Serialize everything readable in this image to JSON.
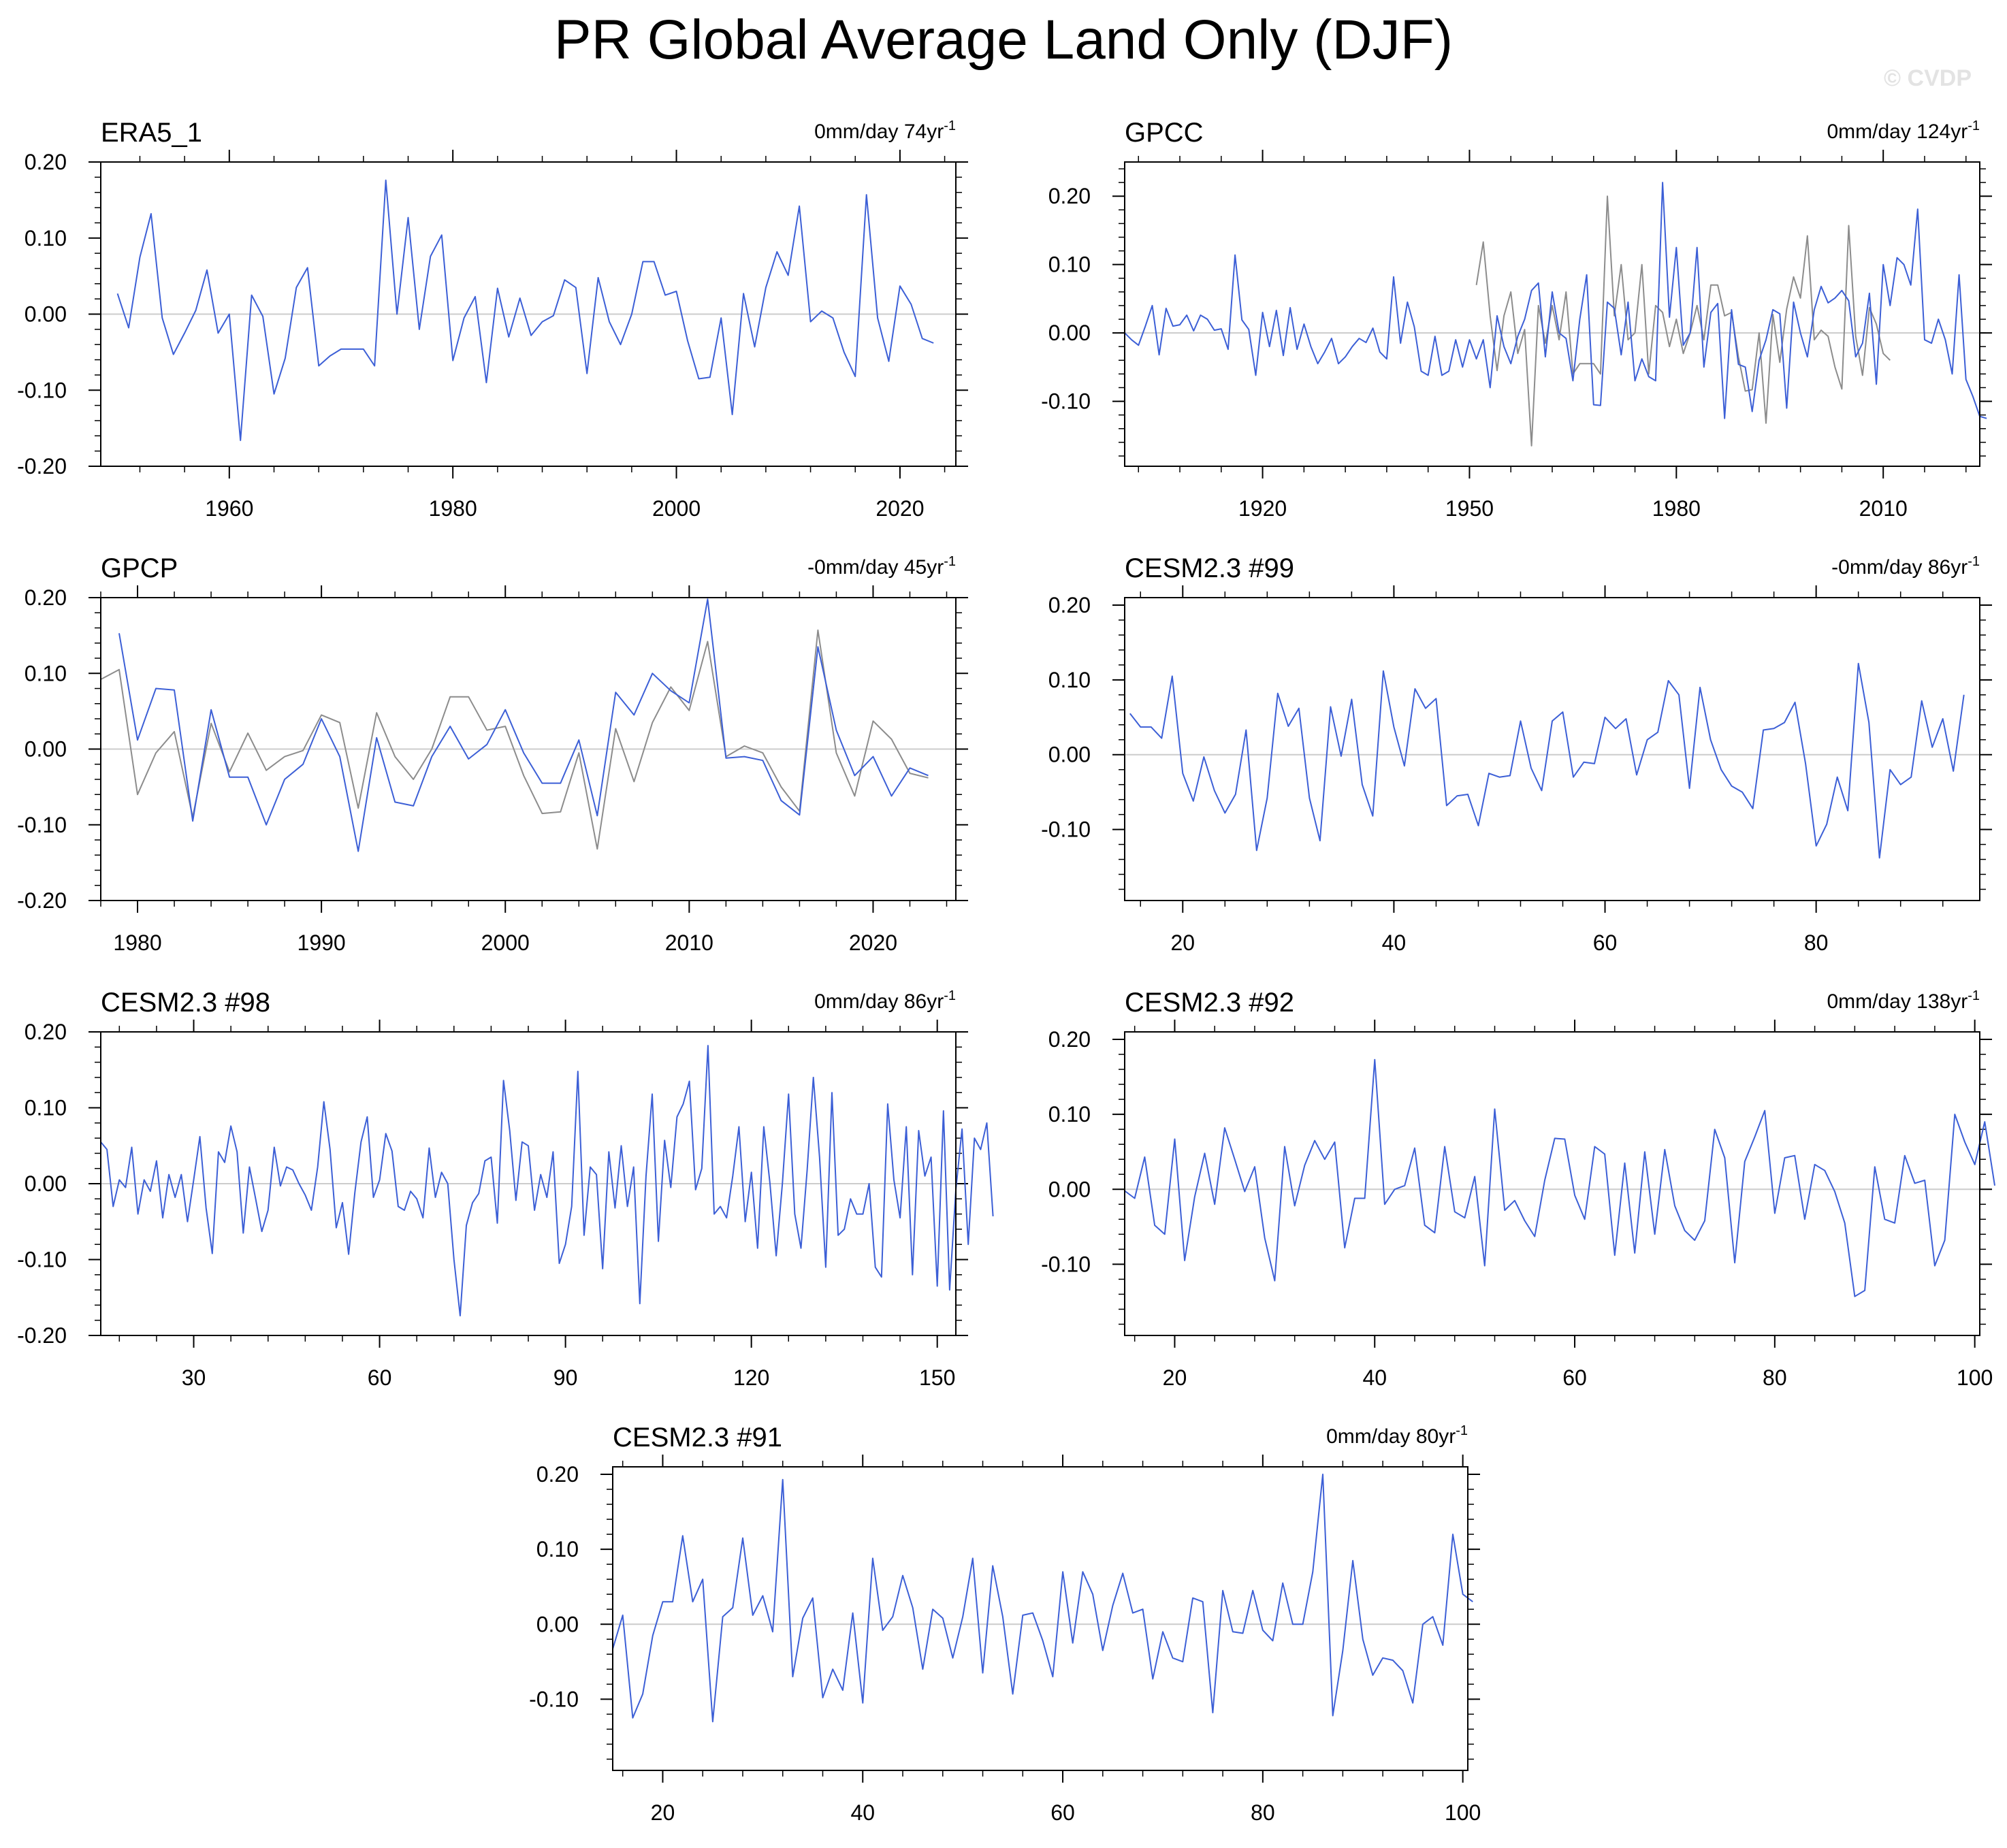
{
  "title": "PR Global Average Land Only (DJF)",
  "watermark": "© CVDP",
  "colors": {
    "model": "#3c5fd6",
    "obs": "#8c8c8c",
    "zero_line": "#cccccc",
    "axis": "#000000"
  },
  "chart_data": [
    {
      "type": "line",
      "title": "ERA5_1",
      "trend_label": "0mm/day 74yr",
      "trend_exp": "-1",
      "x_ticks": [
        1960,
        1980,
        2000,
        2020
      ],
      "x_tick_labels": [
        "1960",
        "1980",
        "2000",
        "2020"
      ],
      "xlim": [
        1948.5,
        2025
      ],
      "ylim": [
        -0.2,
        0.2
      ],
      "y_ticks": [
        -0.2,
        -0.1,
        0,
        0.1,
        0.2
      ],
      "y_tick_labels": [
        "-0.20",
        "-0.10",
        "0.00",
        "0.10",
        "0.20"
      ],
      "series": [
        {
          "x_start": 1950,
          "values": [
            0.027,
            -0.018,
            0.075,
            0.132,
            -0.005,
            -0.053,
            -0.025,
            0.005,
            0.058,
            -0.025,
            0.0,
            -0.166,
            0.025,
            -0.003,
            -0.105,
            -0.058,
            0.035,
            0.061,
            -0.068,
            -0.055,
            -0.046,
            -0.046,
            -0.046,
            -0.068,
            0.176,
            0.0,
            0.127,
            -0.02,
            0.076,
            0.104,
            -0.061,
            -0.005,
            0.023,
            -0.09,
            0.034,
            -0.03,
            0.021,
            -0.028,
            -0.01,
            -0.002,
            0.045,
            0.035,
            -0.078,
            0.048,
            -0.01,
            -0.04,
            0.0,
            0.069,
            0.069,
            0.025,
            0.03,
            -0.035,
            -0.085,
            -0.083,
            -0.005,
            -0.132,
            0.027,
            -0.043,
            0.035,
            0.082,
            0.051,
            0.142,
            -0.01,
            0.004,
            -0.005,
            -0.05,
            -0.082,
            0.157,
            -0.005,
            -0.062,
            0.037,
            0.013,
            -0.032,
            -0.038
          ]
        }
      ]
    },
    {
      "type": "line",
      "title": "GPCC",
      "trend_label": "0mm/day 124yr",
      "trend_exp": "-1",
      "x_ticks": [
        1920,
        1950,
        1980,
        2010
      ],
      "x_tick_labels": [
        "1920",
        "1950",
        "1980",
        "2010"
      ],
      "xlim": [
        1900,
        2024
      ],
      "ylim": [
        -0.195,
        0.25
      ],
      "y_ticks": [
        -0.1,
        0,
        0.1,
        0.2
      ],
      "y_tick_labels": [
        "-0.10",
        "0.00",
        "0.10",
        "0.20"
      ],
      "series": [
        {
          "x_start": 1900,
          "values": [
            0.0,
            -0.01,
            -0.018,
            0.01,
            0.04,
            -0.032,
            0.036,
            0.01,
            0.012,
            0.026,
            0.003,
            0.026,
            0.02,
            0.004,
            0.006,
            -0.024,
            0.114,
            0.019,
            0.005,
            -0.062,
            0.03,
            -0.02,
            0.033,
            -0.033,
            0.037,
            -0.024,
            0.013,
            -0.02,
            -0.045,
            -0.028,
            -0.008,
            -0.045,
            -0.035,
            -0.02,
            -0.008,
            -0.014,
            0.007,
            -0.028,
            -0.038,
            0.082,
            -0.015,
            0.045,
            0.009,
            -0.056,
            -0.062,
            -0.005,
            -0.062,
            -0.056,
            -0.01,
            -0.05,
            -0.01,
            -0.038,
            -0.01,
            -0.08,
            0.025,
            -0.02,
            -0.045,
            -0.005,
            0.02,
            0.062,
            0.073,
            -0.035,
            0.06,
            0.0,
            -0.008,
            -0.07,
            0.02,
            0.085,
            -0.105,
            -0.106,
            0.045,
            0.036,
            -0.032,
            0.045,
            -0.07,
            -0.038,
            -0.064,
            -0.07,
            0.22,
            0.023,
            0.125,
            -0.018,
            0.0,
            0.125,
            -0.05,
            0.03,
            0.043,
            -0.125,
            0.034,
            -0.046,
            -0.05,
            -0.115,
            -0.04,
            -0.01,
            0.034,
            0.028,
            -0.11,
            0.045,
            0.0,
            -0.035,
            0.034,
            0.068,
            0.044,
            0.051,
            0.062,
            0.047,
            -0.035,
            -0.015,
            0.058,
            -0.075,
            0.1,
            0.04,
            0.11,
            0.1,
            0.07,
            0.181,
            -0.01,
            -0.015,
            0.02,
            -0.01,
            -0.06,
            0.085,
            -0.068,
            -0.093,
            -0.122,
            -0.125
          ]
        },
        {
          "x_start": 1951,
          "values": [
            0.07,
            0.133,
            0.025,
            -0.055,
            0.025,
            0.06,
            -0.03,
            0.005,
            -0.165,
            0.04,
            -0.015,
            0.04,
            -0.01,
            0.06,
            -0.06,
            -0.045,
            -0.045,
            -0.045,
            -0.06,
            0.2,
            0.025,
            0.1,
            -0.01,
            0.0,
            0.1,
            -0.06,
            0.04,
            0.03,
            -0.02,
            0.02,
            -0.03,
            0.0,
            0.04,
            -0.01,
            0.07,
            0.07,
            0.025,
            0.03,
            -0.035,
            -0.085,
            -0.083,
            0.0,
            -0.132,
            0.027,
            -0.043,
            0.035,
            0.082,
            0.051,
            0.142,
            -0.01,
            0.004,
            -0.005,
            -0.05,
            -0.082,
            0.157,
            -0.005,
            -0.062,
            0.037,
            0.013,
            -0.03,
            -0.04
          ]
        }
      ]
    },
    {
      "type": "line",
      "title": "GPCP",
      "trend_label": "-0mm/day 45yr",
      "trend_exp": "-1",
      "x_ticks": [
        1980,
        1990,
        2000,
        2010,
        2020
      ],
      "x_tick_labels": [
        "1980",
        "1990",
        "2000",
        "2010",
        "2020"
      ],
      "xlim": [
        1978,
        2024.5
      ],
      "ylim": [
        -0.2,
        0.2
      ],
      "y_ticks": [
        -0.2,
        -0.1,
        0,
        0.1,
        0.2
      ],
      "y_tick_labels": [
        "-0.20",
        "-0.10",
        "0.00",
        "0.10",
        "0.20"
      ],
      "series": [
        {
          "x_start": 1979,
          "values": [
            0.153,
            0.012,
            0.08,
            0.078,
            -0.095,
            0.052,
            -0.037,
            -0.037,
            -0.1,
            -0.04,
            -0.02,
            0.04,
            -0.01,
            -0.135,
            0.015,
            -0.07,
            -0.075,
            -0.01,
            0.03,
            -0.013,
            0.006,
            0.052,
            -0.005,
            -0.045,
            -0.045,
            0.012,
            -0.088,
            0.075,
            0.045,
            0.1,
            0.077,
            0.061,
            0.198,
            -0.012,
            -0.01,
            -0.015,
            -0.068,
            -0.087,
            0.135,
            0.025,
            -0.035,
            -0.01,
            -0.062,
            -0.025,
            -0.035
          ]
        },
        {
          "x_start": 1978,
          "values": [
            0.092,
            0.105,
            -0.06,
            -0.005,
            0.023,
            -0.09,
            0.034,
            -0.03,
            0.021,
            -0.028,
            -0.01,
            -0.002,
            0.045,
            0.035,
            -0.078,
            0.048,
            -0.01,
            -0.04,
            0.0,
            0.069,
            0.069,
            0.025,
            0.03,
            -0.035,
            -0.085,
            -0.083,
            -0.005,
            -0.132,
            0.027,
            -0.043,
            0.035,
            0.082,
            0.051,
            0.142,
            -0.01,
            0.004,
            -0.005,
            -0.05,
            -0.082,
            0.157,
            -0.005,
            -0.062,
            0.037,
            0.013,
            -0.032,
            -0.038
          ]
        }
      ]
    },
    {
      "type": "line",
      "title": "CESM2.3 #99",
      "trend_label": "-0mm/day 86yr",
      "trend_exp": "-1",
      "x_ticks": [
        20,
        40,
        60,
        80
      ],
      "x_tick_labels": [
        "20",
        "40",
        "60",
        "80"
      ],
      "xlim": [
        14.5,
        95.5
      ],
      "ylim": [
        -0.195,
        0.21
      ],
      "y_ticks": [
        -0.1,
        0,
        0.1,
        0.2
      ],
      "y_tick_labels": [
        "-0.10",
        "0.00",
        "0.10",
        "0.20"
      ],
      "series": [
        {
          "x_start": 15,
          "values": [
            0.055,
            0.037,
            0.037,
            0.022,
            0.105,
            -0.025,
            -0.062,
            -0.003,
            -0.048,
            -0.078,
            -0.053,
            0.033,
            -0.128,
            -0.058,
            0.082,
            0.038,
            0.062,
            -0.058,
            -0.115,
            0.064,
            -0.002,
            0.074,
            -0.04,
            -0.082,
            0.112,
            0.037,
            -0.015,
            0.088,
            0.062,
            0.075,
            -0.068,
            -0.055,
            -0.053,
            -0.095,
            -0.025,
            -0.03,
            -0.028,
            0.045,
            -0.018,
            -0.048,
            0.045,
            0.057,
            -0.03,
            -0.01,
            -0.012,
            0.05,
            0.035,
            0.048,
            -0.027,
            0.02,
            0.03,
            0.099,
            0.08,
            -0.045,
            0.09,
            0.02,
            -0.02,
            -0.042,
            -0.05,
            -0.072,
            0.033,
            0.035,
            0.043,
            0.07,
            -0.012,
            -0.122,
            -0.093,
            -0.03,
            -0.075,
            0.122,
            0.043,
            -0.138,
            -0.02,
            -0.04,
            -0.03,
            0.072,
            0.01,
            0.048,
            -0.022,
            0.08
          ]
        }
      ]
    },
    {
      "type": "line",
      "title": "CESM2.3 #98",
      "trend_label": "0mm/day 86yr",
      "trend_exp": "-1",
      "x_ticks": [
        30,
        60,
        90,
        120,
        150
      ],
      "x_tick_labels": [
        "30",
        "60",
        "90",
        "120",
        "150"
      ],
      "xlim": [
        15,
        153
      ],
      "ylim": [
        -0.2,
        0.2
      ],
      "y_ticks": [
        -0.2,
        -0.1,
        0,
        0.1,
        0.2
      ],
      "y_tick_labels": [
        "-0.20",
        "-0.10",
        "0.00",
        "0.10",
        "0.20"
      ],
      "series": [
        {
          "x_start": 15,
          "values": [
            0.055,
            0.045,
            -0.03,
            0.005,
            -0.005,
            0.048,
            -0.04,
            0.005,
            -0.01,
            0.03,
            -0.045,
            0.012,
            -0.018,
            0.012,
            -0.05,
            0.005,
            0.062,
            -0.032,
            -0.092,
            0.042,
            0.028,
            0.076,
            0.042,
            -0.065,
            0.022,
            -0.02,
            -0.063,
            -0.035,
            0.048,
            -0.003,
            0.022,
            0.018,
            0.0,
            -0.015,
            -0.035,
            0.022,
            0.108,
            0.045,
            -0.058,
            -0.025,
            -0.093,
            -0.012,
            0.055,
            0.088,
            -0.018,
            0.005,
            0.066,
            0.043,
            -0.03,
            -0.035,
            -0.01,
            -0.02,
            -0.045,
            0.047,
            -0.018,
            0.015,
            0.0,
            -0.1,
            -0.174,
            -0.055,
            -0.025,
            -0.013,
            0.03,
            0.035,
            -0.052,
            0.136,
            0.07,
            -0.022,
            0.055,
            0.05,
            -0.035,
            0.012,
            -0.018,
            0.042,
            -0.105,
            -0.08,
            -0.03,
            0.148,
            -0.068,
            0.022,
            0.012,
            -0.112,
            0.042,
            -0.032,
            0.05,
            -0.03,
            0.022,
            -0.158,
            0.01,
            0.118,
            -0.076,
            0.057,
            -0.005,
            0.088,
            0.105,
            0.135,
            -0.008,
            0.02,
            0.182,
            -0.04,
            -0.03,
            -0.045,
            0.01,
            0.075,
            -0.05,
            0.015,
            -0.085,
            0.075,
            0.0,
            -0.095,
            0.0,
            0.118,
            -0.04,
            -0.085,
            0.018,
            0.14,
            0.035,
            -0.11,
            0.12,
            -0.068,
            -0.06,
            -0.02,
            -0.04,
            -0.04,
            0.0,
            -0.11,
            -0.123,
            0.105,
            0.005,
            -0.045,
            0.075,
            -0.12,
            0.07,
            0.01,
            0.035,
            -0.135,
            0.096,
            -0.14,
            -0.008,
            0.072,
            -0.08,
            0.06,
            0.045,
            0.08,
            -0.043
          ]
        }
      ]
    },
    {
      "type": "line",
      "title": "CESM2.3 #92",
      "trend_label": "0mm/day 138yr",
      "trend_exp": "-1",
      "x_ticks": [
        20,
        40,
        60,
        80,
        100
      ],
      "x_tick_labels": [
        "20",
        "40",
        "60",
        "80",
        "100"
      ],
      "xlim": [
        15,
        100.5
      ],
      "ylim": [
        -0.195,
        0.21
      ],
      "y_ticks": [
        -0.1,
        0,
        0.1,
        0.2
      ],
      "y_tick_labels": [
        "-0.10",
        "0.00",
        "0.10",
        "0.20"
      ],
      "series": [
        {
          "x_start": 15,
          "values": [
            -0.002,
            -0.012,
            0.043,
            -0.048,
            -0.06,
            0.067,
            -0.095,
            -0.01,
            0.048,
            -0.02,
            0.082,
            0.04,
            -0.003,
            0.03,
            -0.065,
            -0.122,
            0.057,
            -0.022,
            0.032,
            0.065,
            0.04,
            0.063,
            -0.078,
            -0.012,
            -0.012,
            0.173,
            -0.02,
            0.0,
            0.005,
            0.055,
            -0.048,
            -0.058,
            0.057,
            -0.03,
            -0.038,
            0.017,
            -0.102,
            0.107,
            -0.028,
            -0.015,
            -0.042,
            -0.063,
            0.012,
            0.068,
            0.067,
            -0.008,
            -0.04,
            0.057,
            0.047,
            -0.088,
            0.035,
            -0.085,
            0.05,
            -0.06,
            0.053,
            -0.022,
            -0.055,
            -0.068,
            -0.042,
            0.08,
            0.042,
            -0.098,
            0.037,
            0.07,
            0.105,
            -0.032,
            0.042,
            0.045,
            -0.04,
            0.033,
            0.025,
            -0.003,
            -0.045,
            -0.143,
            -0.135,
            0.03,
            -0.04,
            -0.045,
            0.045,
            0.008,
            0.012,
            -0.102,
            -0.068,
            0.1,
            0.063,
            0.033,
            0.09,
            0.005
          ]
        }
      ]
    },
    {
      "type": "line",
      "title": "CESM2.3 #91",
      "trend_label": "0mm/day 80yr",
      "trend_exp": "-1",
      "x_ticks": [
        20,
        40,
        60,
        80,
        100
      ],
      "x_tick_labels": [
        "20",
        "40",
        "60",
        "80",
        "100"
      ],
      "xlim": [
        15,
        100.5
      ],
      "ylim": [
        -0.195,
        0.21
      ],
      "y_ticks": [
        -0.1,
        0,
        0.1,
        0.2
      ],
      "y_tick_labels": [
        "-0.10",
        "0.00",
        "0.10",
        "0.20"
      ],
      "series": [
        {
          "x_start": 15,
          "values": [
            -0.033,
            0.012,
            -0.125,
            -0.093,
            -0.015,
            0.03,
            0.03,
            0.118,
            0.03,
            0.06,
            -0.13,
            0.01,
            0.022,
            0.115,
            0.012,
            0.038,
            -0.01,
            0.193,
            -0.07,
            0.008,
            0.035,
            -0.098,
            -0.06,
            -0.088,
            0.015,
            -0.105,
            0.088,
            -0.008,
            0.01,
            0.065,
            0.022,
            -0.06,
            0.02,
            0.008,
            -0.045,
            0.01,
            0.088,
            -0.065,
            0.078,
            0.01,
            -0.093,
            0.012,
            0.015,
            -0.022,
            -0.07,
            0.07,
            -0.025,
            0.07,
            0.04,
            -0.035,
            0.025,
            0.068,
            0.015,
            0.02,
            -0.073,
            -0.01,
            -0.045,
            -0.05,
            0.035,
            0.03,
            -0.118,
            0.045,
            -0.01,
            -0.012,
            0.045,
            -0.008,
            -0.022,
            0.055,
            0.0,
            0.0,
            0.07,
            0.2,
            -0.122,
            -0.035,
            0.085,
            -0.02,
            -0.068,
            -0.045,
            -0.048,
            -0.062,
            -0.105,
            0.0,
            0.01,
            -0.028,
            0.12,
            0.04,
            0.03
          ]
        }
      ]
    }
  ]
}
